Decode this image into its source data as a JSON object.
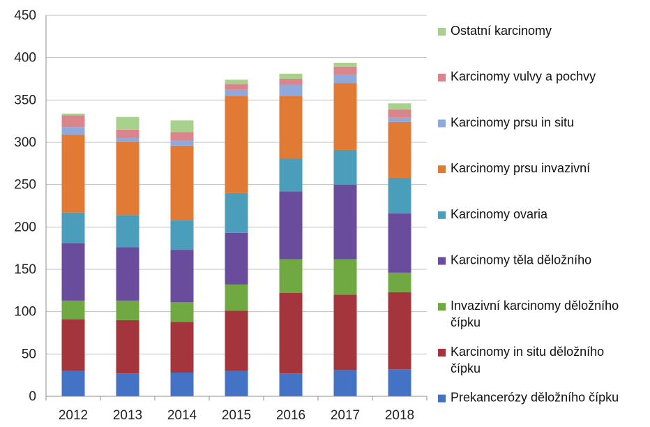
{
  "chart_data": {
    "type": "bar",
    "stacked": true,
    "title": "",
    "xlabel": "",
    "ylabel": "",
    "categories": [
      "2012",
      "2013",
      "2014",
      "2015",
      "2016",
      "2017",
      "2018"
    ],
    "ylim": [
      0,
      450
    ],
    "yticks": [
      0,
      50,
      100,
      150,
      200,
      250,
      300,
      350,
      400,
      450
    ],
    "grid": true,
    "legend_position": "right",
    "series": [
      {
        "name": "Prekancerózy děložního čípku",
        "name_lines": [
          "Prekancerózy děložního čípku"
        ],
        "color": "#4472C4",
        "values": [
          30,
          27,
          28,
          30,
          27,
          31,
          32
        ]
      },
      {
        "name": "Karcinomy in situ děložního čípku",
        "name_lines": [
          "Karcinomy in situ děložního",
          "čípku"
        ],
        "color": "#A5353D",
        "values": [
          61,
          63,
          60,
          71,
          95,
          89,
          91
        ]
      },
      {
        "name": "Invazivní karcinomy děložního čípku",
        "name_lines": [
          "Invazivní karcinomy děložního",
          "čípku"
        ],
        "color": "#70A842",
        "values": [
          22,
          23,
          23,
          31,
          40,
          42,
          23
        ]
      },
      {
        "name": "Karcinomy těla děložního",
        "name_lines": [
          "Karcinomy těla děložního"
        ],
        "color": "#6A4C9C",
        "values": [
          68,
          63,
          62,
          61,
          80,
          88,
          70
        ]
      },
      {
        "name": "Karcinomy ovaria",
        "name_lines": [
          "Karcinomy ovaria"
        ],
        "color": "#4A9DBB",
        "values": [
          36,
          38,
          35,
          47,
          39,
          41,
          42
        ]
      },
      {
        "name": "Karcinomy prsu invazivní",
        "name_lines": [
          "Karcinomy prsu invazivní"
        ],
        "color": "#E07A34",
        "values": [
          92,
          87,
          88,
          115,
          74,
          79,
          66
        ]
      },
      {
        "name": "Karcinomy prsu in situ",
        "name_lines": [
          "Karcinomy prsu in situ"
        ],
        "color": "#8FA9DB",
        "values": [
          9,
          4,
          6,
          7,
          13,
          10,
          5
        ]
      },
      {
        "name": "Karcinomy vulvy a pochvy",
        "name_lines": [
          "Karcinomy vulvy a pochvy"
        ],
        "color": "#D9858B",
        "values": [
          14,
          10,
          10,
          7,
          7,
          9,
          10
        ]
      },
      {
        "name": "Ostatní karcinomy",
        "name_lines": [
          "Ostatní karcinomy"
        ],
        "color": "#A9D18E",
        "values": [
          2,
          15,
          14,
          5,
          6,
          5,
          7
        ]
      }
    ]
  }
}
